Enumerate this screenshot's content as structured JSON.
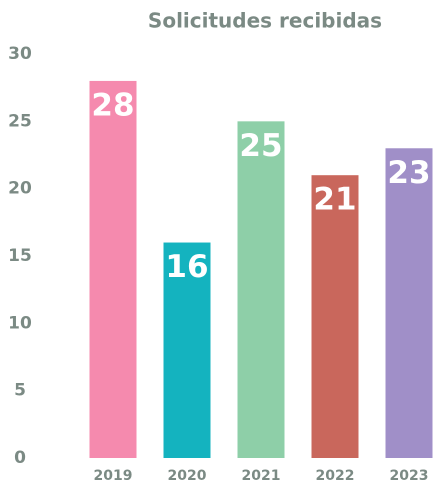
{
  "chart_data": {
    "type": "bar",
    "title": "Solicitudes recibidas",
    "categories": [
      "2019",
      "2020",
      "2021",
      "2022",
      "2023"
    ],
    "values": [
      28,
      16,
      25,
      21,
      23
    ],
    "colors": [
      "#f58aae",
      "#14b3bf",
      "#8ecfa8",
      "#c9675c",
      "#a08fc8"
    ],
    "ylim": [
      0,
      30
    ],
    "yticks": [
      0,
      5,
      10,
      15,
      20,
      25,
      30
    ],
    "grid": false
  }
}
